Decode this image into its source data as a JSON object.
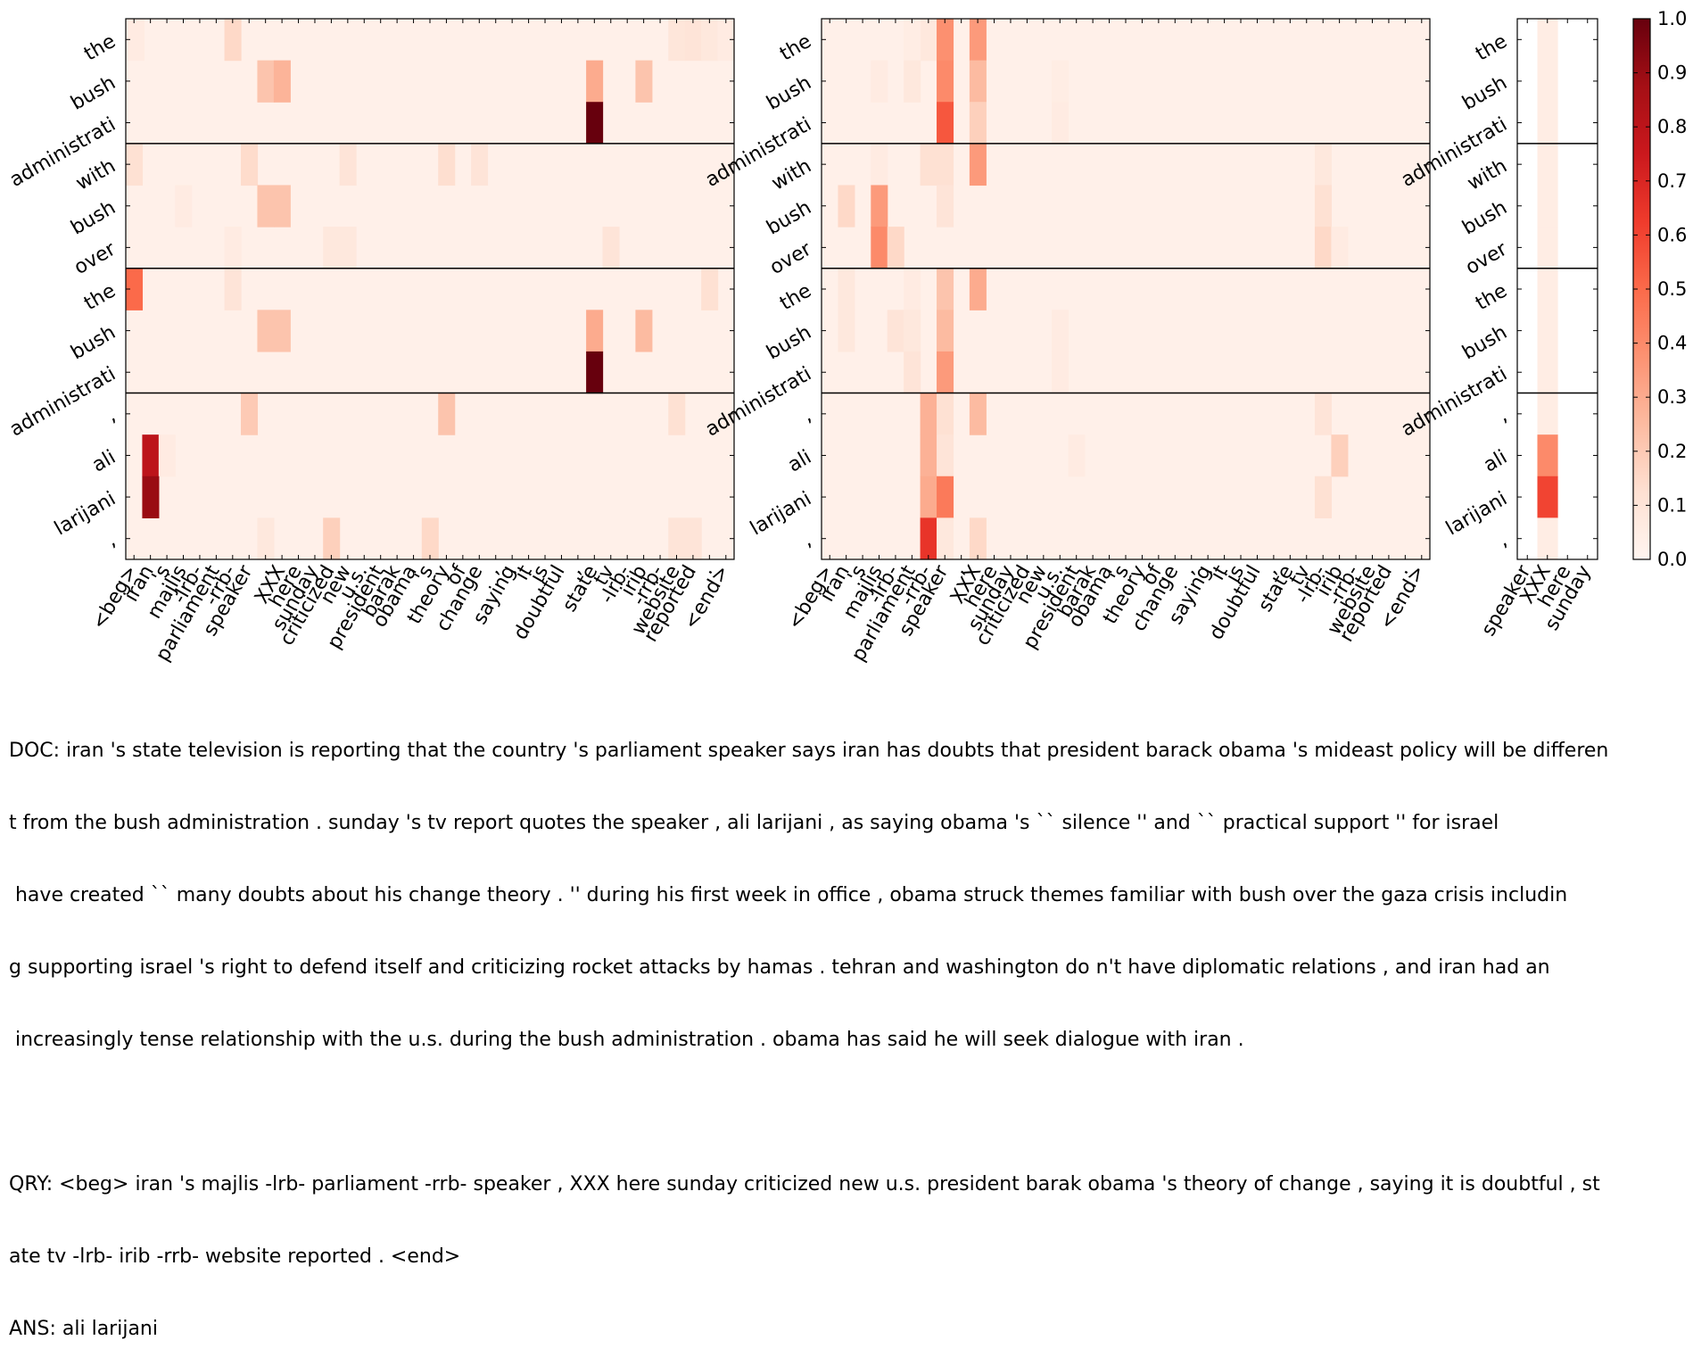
{
  "chart_data": {
    "type": "heatmap",
    "colormap": "Reds",
    "vmin": 0.0,
    "vmax": 1.0,
    "colorbar_ticks": [
      "0.0",
      "0.1",
      "0.2",
      "0.3",
      "0.4",
      "0.5",
      "0.6",
      "0.7",
      "0.8",
      "0.9",
      "1.0"
    ],
    "row_labels": [
      "the",
      "bush",
      "administrati",
      "with",
      "bush",
      "over",
      "the",
      "bush",
      "administrati",
      ",",
      "ali",
      "larijani",
      ","
    ],
    "row_groups": [
      3,
      3,
      3,
      4
    ],
    "panels": [
      {
        "x_labels": [
          "<beg>",
          "iran",
          "'s",
          "majlis",
          "-lrb-",
          "parliament",
          "-rrb-",
          "speaker",
          ",",
          "XXX",
          "here",
          "sunday",
          "criticized",
          "new",
          "u.s.",
          "president",
          "barak",
          "obama",
          "'s",
          "theory",
          "of",
          "change",
          ",",
          "saying",
          "it",
          "is",
          "doubtful",
          ",",
          "state",
          "tv",
          "-lrb-",
          "irib",
          "-rrb-",
          "website",
          "reported",
          ".",
          "<end>"
        ],
        "cells": [
          [
            0,
            0.1,
            0.06
          ],
          [
            0,
            5,
            0.03
          ],
          [
            0,
            6,
            0.15
          ],
          [
            0,
            33,
            0.09
          ],
          [
            0,
            34,
            0.1
          ],
          [
            0,
            35,
            0.08
          ],
          [
            0,
            36,
            0.06
          ],
          [
            1,
            8,
            0.22
          ],
          [
            1,
            9,
            0.27
          ],
          [
            1,
            28,
            0.3
          ],
          [
            1,
            31,
            0.22
          ],
          [
            2,
            28,
            1.0
          ],
          [
            3,
            0,
            0.12
          ],
          [
            3,
            7,
            0.14
          ],
          [
            3,
            13,
            0.1
          ],
          [
            3,
            19,
            0.13
          ],
          [
            3,
            21,
            0.1
          ],
          [
            4,
            8,
            0.22
          ],
          [
            4,
            9,
            0.22
          ],
          [
            4,
            3,
            0.06
          ],
          [
            5,
            6,
            0.06
          ],
          [
            5,
            12,
            0.08
          ],
          [
            5,
            13,
            0.08
          ],
          [
            5,
            29,
            0.1
          ],
          [
            6,
            0,
            0.5
          ],
          [
            6,
            6,
            0.1
          ],
          [
            6,
            35,
            0.12
          ],
          [
            7,
            8,
            0.22
          ],
          [
            7,
            9,
            0.22
          ],
          [
            7,
            28,
            0.3
          ],
          [
            7,
            31,
            0.25
          ],
          [
            8,
            28,
            1.0
          ],
          [
            9,
            7,
            0.2
          ],
          [
            9,
            19,
            0.22
          ],
          [
            9,
            33,
            0.12
          ],
          [
            10,
            1,
            0.8
          ],
          [
            10,
            2,
            0.06
          ],
          [
            11,
            1,
            0.9
          ],
          [
            12,
            8,
            0.08
          ],
          [
            12,
            12,
            0.18
          ],
          [
            12,
            18,
            0.15
          ],
          [
            12,
            33,
            0.1
          ],
          [
            12,
            34,
            0.1
          ]
        ]
      },
      {
        "x_labels": [
          "<beg>",
          "iran",
          "'s",
          "majlis",
          "-lrb-",
          "parliament",
          "-rrb-",
          "speaker",
          ",",
          "XXX",
          "here",
          "sunday",
          "criticized",
          "new",
          "u.s.",
          "president",
          "barak",
          "obama",
          "'s",
          "theory",
          "of",
          "change",
          ",",
          "saying",
          "it",
          "is",
          "doubtful",
          ",",
          "state",
          "tv",
          "-lrb-",
          "irib",
          "-rrb-",
          "website",
          "reported",
          ".",
          "<end>"
        ],
        "cells": [
          [
            0,
            6,
            0.08
          ],
          [
            0,
            7,
            0.38
          ],
          [
            0,
            9,
            0.35
          ],
          [
            0,
            5,
            0.05
          ],
          [
            1,
            7,
            0.4
          ],
          [
            1,
            9,
            0.25
          ],
          [
            1,
            3,
            0.06
          ],
          [
            1,
            5,
            0.08
          ],
          [
            1,
            14,
            0.05
          ],
          [
            2,
            7,
            0.55
          ],
          [
            2,
            9,
            0.18
          ],
          [
            2,
            14,
            0.06
          ],
          [
            3,
            6,
            0.12
          ],
          [
            3,
            7,
            0.12
          ],
          [
            3,
            9,
            0.35
          ],
          [
            3,
            3,
            0.06
          ],
          [
            3,
            30,
            0.08
          ],
          [
            4,
            1,
            0.15
          ],
          [
            4,
            3,
            0.35
          ],
          [
            4,
            7,
            0.1
          ],
          [
            4,
            30,
            0.12
          ],
          [
            5,
            3,
            0.4
          ],
          [
            5,
            4,
            0.15
          ],
          [
            5,
            30,
            0.15
          ],
          [
            5,
            31,
            0.06
          ],
          [
            6,
            7,
            0.22
          ],
          [
            6,
            9,
            0.3
          ],
          [
            6,
            1,
            0.08
          ],
          [
            6,
            5,
            0.06
          ],
          [
            7,
            7,
            0.25
          ],
          [
            7,
            1,
            0.08
          ],
          [
            7,
            4,
            0.1
          ],
          [
            7,
            5,
            0.08
          ],
          [
            7,
            14,
            0.06
          ],
          [
            8,
            7,
            0.35
          ],
          [
            8,
            5,
            0.1
          ],
          [
            8,
            14,
            0.06
          ],
          [
            9,
            6,
            0.28
          ],
          [
            9,
            9,
            0.25
          ],
          [
            9,
            7,
            0.12
          ],
          [
            9,
            30,
            0.1
          ],
          [
            10,
            6,
            0.28
          ],
          [
            10,
            7,
            0.1
          ],
          [
            10,
            31,
            0.18
          ],
          [
            10,
            15,
            0.06
          ],
          [
            11,
            6,
            0.3
          ],
          [
            11,
            7,
            0.45
          ],
          [
            11,
            30,
            0.12
          ],
          [
            12,
            6,
            0.65
          ],
          [
            12,
            7,
            0.08
          ],
          [
            12,
            9,
            0.15
          ]
        ]
      },
      {
        "x_labels": [
          "speaker",
          "XXX",
          "here",
          "sunday"
        ],
        "cells": [
          [
            0,
            1,
            0.05
          ],
          [
            1,
            1,
            0.05
          ],
          [
            2,
            1,
            0.05
          ],
          [
            3,
            1,
            0.05
          ],
          [
            4,
            1,
            0.05
          ],
          [
            5,
            1,
            0.05
          ],
          [
            6,
            1,
            0.05
          ],
          [
            7,
            1,
            0.05
          ],
          [
            8,
            1,
            0.05
          ],
          [
            9,
            1,
            0.05
          ],
          [
            10,
            1,
            0.4
          ],
          [
            11,
            1,
            0.6
          ],
          [
            12,
            1,
            0.05
          ]
        ]
      }
    ]
  },
  "caption": {
    "doc_lines": [
      "DOC: iran 's state television is reporting that the country 's parliament speaker says iran has doubts that president barack obama 's mideast policy will be differen",
      "t from the bush administration . sunday 's tv report quotes the speaker , ali larijani , as saying obama 's `` silence '' and `` practical support '' for israel",
      " have created `` many doubts about his change theory . '' during his first week in office , obama struck themes familiar with bush over the gaza crisis includin",
      "g supporting israel 's right to defend itself and criticizing rocket attacks by hamas . tehran and washington do n't have diplomatic relations , and iran had an",
      " increasingly tense relationship with the u.s. during the bush administration . obama has said he will seek dialogue with iran ."
    ],
    "qry_lines": [
      "QRY: <beg> iran 's majlis -lrb- parliament -rrb- speaker , XXX here sunday criticized new u.s. president barak obama 's theory of change , saying it is doubtful , st",
      "ate tv -lrb- irib -rrb- website reported . <end>"
    ],
    "ans_line": "ANS: ali larijani"
  }
}
